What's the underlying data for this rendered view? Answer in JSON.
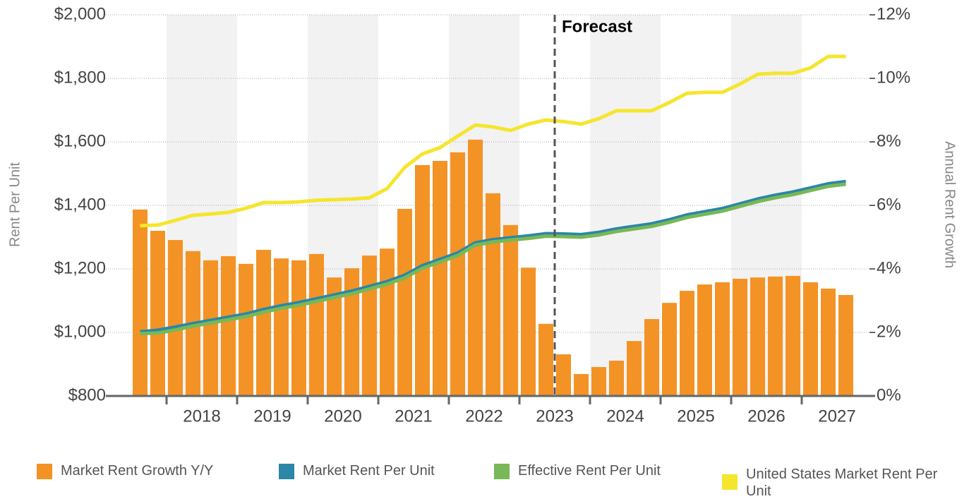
{
  "chart_data": {
    "type": "combo",
    "x": [
      2017.625,
      2017.875,
      2018.125,
      2018.375,
      2018.625,
      2018.875,
      2019.125,
      2019.375,
      2019.625,
      2019.875,
      2020.125,
      2020.375,
      2020.625,
      2020.875,
      2021.125,
      2021.375,
      2021.625,
      2021.875,
      2022.125,
      2022.375,
      2022.625,
      2022.875,
      2023.125,
      2023.375,
      2023.625,
      2023.875,
      2024.125,
      2024.375,
      2024.625,
      2024.875,
      2025.125,
      2025.375,
      2025.625,
      2025.875,
      2026.125,
      2026.375,
      2026.625,
      2026.875,
      2027.125,
      2027.375,
      2027.625
    ],
    "xlim": [
      2017.5,
      2028
    ],
    "xticks": [
      {
        "value": 2018.5,
        "label": "2018"
      },
      {
        "value": 2019.5,
        "label": "2019"
      },
      {
        "value": 2020.5,
        "label": "2020"
      },
      {
        "value": 2021.5,
        "label": "2021"
      },
      {
        "value": 2022.5,
        "label": "2022"
      },
      {
        "value": 2023.5,
        "label": "2023"
      },
      {
        "value": 2024.5,
        "label": "2024"
      },
      {
        "value": 2025.5,
        "label": "2025"
      },
      {
        "value": 2026.5,
        "label": "2026"
      },
      {
        "value": 2027.5,
        "label": "2027"
      }
    ],
    "xtick_marks": [
      2018,
      2019,
      2020,
      2021,
      2022,
      2023,
      2024,
      2025,
      2026,
      2027
    ],
    "ylim": [
      800,
      2000
    ],
    "yticks": [
      {
        "value": 800,
        "label": "$800"
      },
      {
        "value": 1000,
        "label": "$1,000"
      },
      {
        "value": 1200,
        "label": "$1,200"
      },
      {
        "value": 1400,
        "label": "$1,400"
      },
      {
        "value": 1600,
        "label": "$1,600"
      },
      {
        "value": 1800,
        "label": "$1,800"
      },
      {
        "value": 2000,
        "label": "$2,000"
      }
    ],
    "y2lim": [
      0,
      12
    ],
    "y2ticks": [
      {
        "value": 0,
        "label": "0%"
      },
      {
        "value": 2,
        "label": "2%"
      },
      {
        "value": 4,
        "label": "4%"
      },
      {
        "value": 6,
        "label": "6%"
      },
      {
        "value": 8,
        "label": "8%"
      },
      {
        "value": 10,
        "label": "10%"
      },
      {
        "value": 12,
        "label": "12%"
      }
    ],
    "y_label": "Rent Per Unit",
    "y2_label": "Annual Rent Growth",
    "grid": true,
    "legend": "bottom",
    "annotation": {
      "text": "Forecast",
      "x": 2023.5
    },
    "series": [
      {
        "name": "Market Rent Growth Y/Y",
        "type": "bar",
        "axis": "y2",
        "color": "#f39325",
        "values": [
          5.87,
          5.2,
          4.91,
          4.56,
          4.27,
          4.4,
          4.16,
          4.6,
          4.33,
          4.27,
          4.47,
          3.73,
          4.02,
          4.42,
          4.64,
          5.89,
          7.27,
          7.4,
          7.67,
          8.07,
          6.38,
          5.38,
          4.04,
          2.27,
          1.31,
          0.69,
          0.91,
          1.11,
          1.73,
          2.42,
          2.93,
          3.31,
          3.51,
          3.58,
          3.69,
          3.73,
          3.76,
          3.78,
          3.58,
          3.38,
          3.18
        ]
      },
      {
        "name": "Market Rent Per Unit",
        "type": "line",
        "axis": "y",
        "color": "#2b86a8",
        "values": [
          1002,
          1007,
          1017,
          1028,
          1038,
          1048,
          1058,
          1072,
          1084,
          1094,
          1106,
          1118,
          1130,
          1145,
          1160,
          1180,
          1210,
          1230,
          1250,
          1282,
          1292,
          1298,
          1304,
          1311,
          1310,
          1308,
          1315,
          1326,
          1334,
          1342,
          1355,
          1370,
          1380,
          1390,
          1405,
          1420,
          1432,
          1442,
          1455,
          1468,
          1475
        ]
      },
      {
        "name": "Effective Rent Per Unit",
        "type": "line",
        "axis": "y",
        "color": "#78b856",
        "values": [
          996,
          998,
          1008,
          1020,
          1030,
          1040,
          1050,
          1064,
          1076,
          1086,
          1098,
          1110,
          1122,
          1137,
          1152,
          1172,
          1202,
          1222,
          1242,
          1275,
          1285,
          1291,
          1296,
          1303,
          1302,
          1300,
          1307,
          1318,
          1326,
          1334,
          1347,
          1362,
          1372,
          1382,
          1397,
          1412,
          1424,
          1434,
          1447,
          1460,
          1467
        ]
      },
      {
        "name": "United States Market Rent Per Unit",
        "type": "line",
        "axis": "y",
        "color": "#f5e52e",
        "values": [
          1336,
          1338,
          1353,
          1369,
          1373,
          1378,
          1391,
          1409,
          1409,
          1411,
          1416,
          1418,
          1420,
          1424,
          1453,
          1520,
          1562,
          1582,
          1618,
          1653,
          1647,
          1636,
          1656,
          1669,
          1664,
          1656,
          1673,
          1698,
          1698,
          1698,
          1724,
          1753,
          1756,
          1756,
          1782,
          1813,
          1816,
          1816,
          1833,
          1869,
          1869
        ]
      }
    ]
  }
}
